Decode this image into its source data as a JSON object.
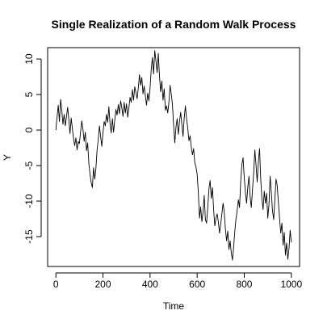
{
  "chart_data": {
    "type": "line",
    "title": "Single Realization of a Random Walk Process",
    "xlabel": "Time",
    "ylabel": "Y",
    "xlim": [
      -35,
      1035
    ],
    "ylim": [
      -19.2,
      11.6
    ],
    "xticks": [
      0,
      200,
      400,
      600,
      800,
      1000
    ],
    "yticks": [
      -15,
      -10,
      -5,
      0,
      5,
      10
    ],
    "grid": false,
    "legend": "none",
    "line_color": "#000000",
    "series": [
      {
        "x": [
          0,
          5,
          10,
          15,
          20,
          25,
          30,
          35,
          40,
          45,
          50,
          55,
          60,
          65,
          70,
          75,
          80,
          85,
          90,
          95,
          100,
          105,
          110,
          115,
          120,
          125,
          130,
          135,
          140,
          145,
          150,
          155,
          160,
          165,
          170,
          175,
          180,
          185,
          190,
          195,
          200,
          205,
          210,
          215,
          220,
          225,
          230,
          235,
          240,
          245,
          250,
          255,
          260,
          265,
          270,
          275,
          280,
          285,
          290,
          295,
          300,
          305,
          310,
          315,
          320,
          325,
          330,
          335,
          340,
          345,
          350,
          355,
          360,
          365,
          370,
          375,
          380,
          385,
          390,
          395,
          400,
          405,
          410,
          415,
          420,
          425,
          430,
          435,
          440,
          445,
          450,
          455,
          460,
          465,
          470,
          475,
          480,
          485,
          490,
          495,
          500,
          505,
          510,
          515,
          520,
          525,
          530,
          535,
          540,
          545,
          550,
          555,
          560,
          565,
          570,
          575,
          580,
          585,
          590,
          595,
          600,
          605,
          610,
          615,
          620,
          625,
          630,
          635,
          640,
          645,
          650,
          655,
          660,
          665,
          670,
          675,
          680,
          685,
          690,
          695,
          700,
          705,
          710,
          715,
          720,
          725,
          730,
          735,
          740,
          745,
          750,
          755,
          760,
          765,
          770,
          775,
          780,
          785,
          790,
          795,
          800,
          805,
          810,
          815,
          820,
          825,
          830,
          835,
          840,
          845,
          850,
          855,
          860,
          865,
          870,
          875,
          880,
          885,
          890,
          895,
          900,
          905,
          910,
          915,
          920,
          925,
          930,
          935,
          940,
          945,
          950,
          955,
          960,
          965,
          970,
          975,
          980,
          985,
          990,
          995,
          1000
        ],
        "y": [
          0,
          1.8,
          3.5,
          1.2,
          4.3,
          2.8,
          0.8,
          2.2,
          0.6,
          1.9,
          3.2,
          1.5,
          -0.5,
          1.7,
          0.2,
          -1.2,
          -2.2,
          -1.1,
          -2.8,
          -1.6,
          -1.9,
          -0.2,
          1.3,
          0.1,
          -1.6,
          -0.3,
          -2.9,
          -1.8,
          -4.7,
          -6.2,
          -7.4,
          -8.1,
          -5.3,
          -6.9,
          -5.4,
          -2.8,
          -1.3,
          0.6,
          -0.9,
          -2.3,
          -0.4,
          1.2,
          0.6,
          2.2,
          1.1,
          3.3,
          0.9,
          -0.4,
          1.6,
          -0.3,
          1.4,
          2.9,
          2.1,
          3.6,
          2.3,
          4.1,
          3.2,
          1.9,
          3.9,
          2.4,
          3.7,
          1.8,
          3.1,
          4.6,
          3.9,
          5.7,
          4.2,
          6.1,
          5.3,
          4.4,
          5.9,
          7.8,
          6.3,
          7.4,
          5.1,
          6.2,
          4.8,
          3.5,
          5.2,
          4.1,
          5.9,
          8.6,
          10.2,
          7.9,
          11.2,
          9.7,
          8.1,
          10.8,
          7.6,
          5.4,
          6.9,
          4.2,
          5.8,
          2.8,
          3.4,
          2.4,
          3.9,
          6.3,
          5.1,
          3.6,
          0.7,
          -1.8,
          0.4,
          1.6,
          -0.6,
          1.2,
          2.5,
          0.8,
          -0.9,
          1.7,
          3.4,
          1.6,
          0.3,
          -1.5,
          -0.8,
          -2.4,
          -3.5,
          -2.6,
          -4.6,
          -5.2,
          -6.2,
          -8.8,
          -12.4,
          -10.8,
          -12.9,
          -11.5,
          -9.2,
          -12.6,
          -13.1,
          -10.9,
          -8.3,
          -7.1,
          -9.6,
          -8.1,
          -11.2,
          -13.5,
          -12.4,
          -11.8,
          -12.9,
          -14.5,
          -13.2,
          -11.8,
          -10.3,
          -11.5,
          -13.9,
          -15.6,
          -14.2,
          -16.8,
          -15.6,
          -17.3,
          -18.3,
          -16.4,
          -14.2,
          -12.5,
          -11.3,
          -9.8,
          -10.9,
          -7.2,
          -4.8,
          -3.9,
          -6.7,
          -8.8,
          -10.3,
          -8.1,
          -6.5,
          -9.4,
          -10.9,
          -8.4,
          -6.1,
          -2.8,
          -4.9,
          -7.3,
          -4.5,
          -2.6,
          -6.9,
          -9.7,
          -11.2,
          -8.6,
          -10.3,
          -8.9,
          -12.4,
          -10.5,
          -6.5,
          -8.8,
          -11.4,
          -12.6,
          -9.8,
          -6.9,
          -7.8,
          -10.2,
          -12.4,
          -14.5,
          -13.1,
          -16.2,
          -14.4,
          -17.6,
          -15.9,
          -18.2,
          -16.7,
          -14.1,
          -15.8
        ]
      }
    ]
  }
}
